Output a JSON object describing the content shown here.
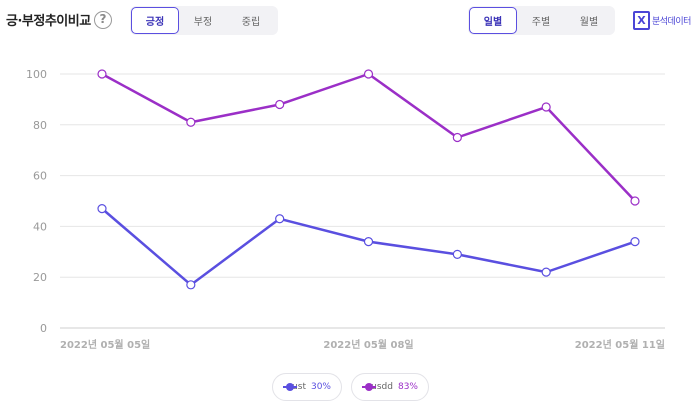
{
  "header": {
    "title": "긍·부정추이비교",
    "help_icon": "?",
    "sentiment_tabs": [
      {
        "label": "긍정",
        "active": true
      },
      {
        "label": "부정",
        "active": false
      },
      {
        "label": "중립",
        "active": false
      }
    ],
    "period_tabs": [
      {
        "label": "일별",
        "active": true
      },
      {
        "label": "주별",
        "active": false
      },
      {
        "label": "월별",
        "active": false
      }
    ],
    "export": {
      "icon": "excel-icon",
      "icon_glyph": "X",
      "label": "분석데이터"
    }
  },
  "legend": [
    {
      "name": "ust",
      "percent": "30%",
      "color": "#5a4fe0"
    },
    {
      "name": "usdd",
      "percent": "83%",
      "color": "#9b2fc7"
    }
  ],
  "chart_data": {
    "type": "line",
    "x": [
      "2022-05-05",
      "2022-05-06",
      "2022-05-07",
      "2022-05-08",
      "2022-05-09",
      "2022-05-10",
      "2022-05-11"
    ],
    "x_tick_labels": [
      "2022년 05월 05일",
      "2022년 05월 08일",
      "2022년 05월 11일"
    ],
    "x_tick_indices": [
      0,
      3,
      6
    ],
    "y_ticks": [
      0,
      20,
      40,
      60,
      80,
      100
    ],
    "ylim": [
      0,
      100
    ],
    "grid": true,
    "legend_placement": "bottom-center",
    "series": [
      {
        "name": "ust",
        "color": "#5a4fe0",
        "values": [
          47,
          17,
          43,
          34,
          29,
          22,
          34
        ]
      },
      {
        "name": "usdd",
        "color": "#9b2fc7",
        "values": [
          100,
          81,
          88,
          100,
          75,
          87,
          50
        ]
      }
    ]
  }
}
